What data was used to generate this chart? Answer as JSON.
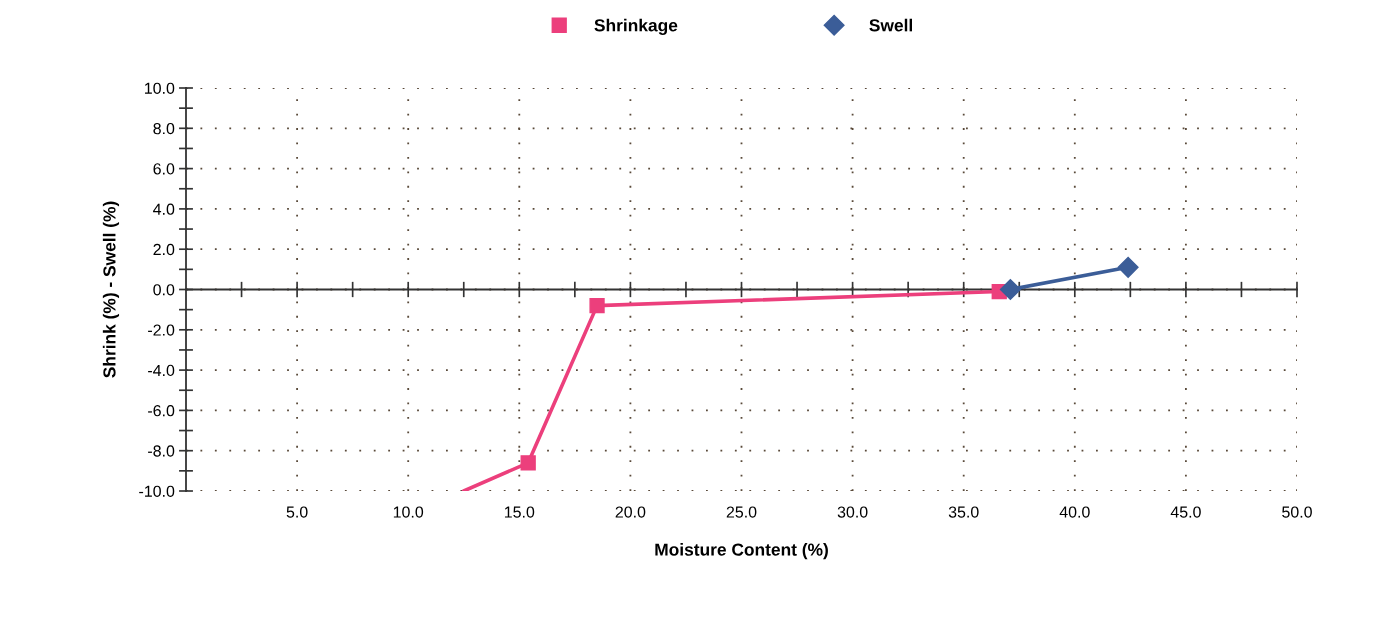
{
  "chart_data": {
    "type": "line",
    "xlabel": "Moisture Content (%)",
    "ylabel": "Shrink (%) - Swell (%)",
    "series": [
      {
        "color": "#ec3f7c",
        "x": [
          12.5,
          15.4
        ],
        "values": [
          -10.0,
          -8.6
        ]
      },
      {
        "name": "Shrinkage",
        "color": "#ec3f7c",
        "marker": "square",
        "x": [
          15.4,
          18.5,
          36.6
        ],
        "values": [
          -8.6,
          -0.8,
          -0.1
        ]
      },
      {
        "name": "Swell",
        "color": "#3b5d98",
        "marker": "diamond",
        "x": [
          37.1,
          42.4
        ],
        "values": [
          0.0,
          1.1
        ]
      }
    ],
    "xlim": [
      0,
      50
    ],
    "xticks": [
      {
        "value": 2.5,
        "label": null
      },
      {
        "value": 5,
        "label": "5.0"
      },
      {
        "value": 7.5,
        "label": null
      },
      {
        "value": 10,
        "label": "10.0"
      },
      {
        "value": 12.5,
        "label": null
      },
      {
        "value": 15,
        "label": "15.0"
      },
      {
        "value": 17.5,
        "label": null
      },
      {
        "value": 20,
        "label": "20.0"
      },
      {
        "value": 22.5,
        "label": null
      },
      {
        "value": 25,
        "label": "25.0"
      },
      {
        "value": 27.5,
        "label": null
      },
      {
        "value": 30,
        "label": "30.0"
      },
      {
        "value": 32.5,
        "label": null
      },
      {
        "value": 35,
        "label": "35.0"
      },
      {
        "value": 37.5,
        "label": null
      },
      {
        "value": 40,
        "label": "40.0"
      },
      {
        "value": 42.5,
        "label": null
      },
      {
        "value": 45,
        "label": "45.0"
      },
      {
        "value": 47.5,
        "label": null
      },
      {
        "value": 50,
        "label": "50.0"
      }
    ],
    "ylim": [
      -10,
      10
    ],
    "yticks": [
      {
        "value": -10,
        "label": "-10.0"
      },
      {
        "value": -9,
        "label": null
      },
      {
        "value": -8,
        "label": "-8.0"
      },
      {
        "value": -7,
        "label": null
      },
      {
        "value": -6,
        "label": "-6.0"
      },
      {
        "value": -5,
        "label": null
      },
      {
        "value": -4,
        "label": "-4.0"
      },
      {
        "value": -3,
        "label": null
      },
      {
        "value": -2,
        "label": "-2.0"
      },
      {
        "value": -1,
        "label": null
      },
      {
        "value": 0,
        "label": "0.0"
      },
      {
        "value": 1,
        "label": null
      },
      {
        "value": 2,
        "label": "2.0"
      },
      {
        "value": 3,
        "label": null
      },
      {
        "value": 4,
        "label": "4.0"
      },
      {
        "value": 5,
        "label": null
      },
      {
        "value": 6,
        "label": "6.0"
      },
      {
        "value": 7,
        "label": null
      },
      {
        "value": 8,
        "label": "8.0"
      },
      {
        "value": 9,
        "label": null
      },
      {
        "value": 10,
        "label": "10.0"
      }
    ],
    "ref_lines": [
      {
        "axis": "y",
        "value": 0,
        "color": "#333333",
        "line_style": "solid"
      }
    ],
    "grid": true,
    "legend": "top"
  }
}
